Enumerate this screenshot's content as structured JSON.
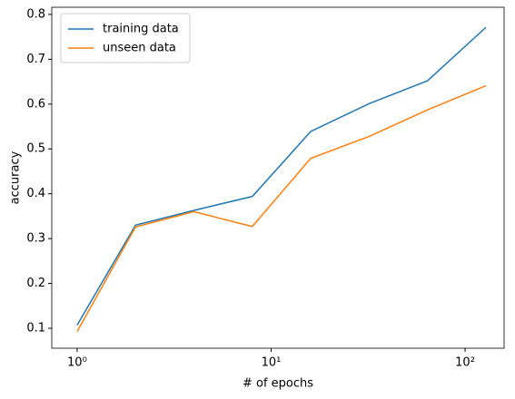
{
  "chart_data": {
    "type": "line",
    "xscale": "log",
    "x_label": "# of epochs",
    "y_label": "accuracy",
    "x": [
      1,
      2,
      4,
      8,
      16,
      32,
      64,
      128
    ],
    "series": [
      {
        "name": "training data",
        "color": "#1f77b4",
        "values": [
          0.107,
          0.33,
          0.363,
          0.394,
          0.539,
          0.601,
          0.652,
          0.771
        ]
      },
      {
        "name": "unseen data",
        "color": "#ff7f0e",
        "values": [
          0.093,
          0.326,
          0.36,
          0.327,
          0.479,
          0.528,
          0.587,
          0.641
        ]
      }
    ],
    "xlim": [
      0.74,
      158.9
    ],
    "xticks": [
      {
        "value": 1,
        "label": "10⁰"
      },
      {
        "value": 10,
        "label": "10¹"
      },
      {
        "value": 100,
        "label": "10²"
      }
    ],
    "ylim": [
      0.0555,
      0.816
    ],
    "yticks": [
      0.1,
      0.2,
      0.3,
      0.4,
      0.5,
      0.6,
      0.7,
      0.8
    ],
    "legend": "upper left",
    "grid": false
  }
}
